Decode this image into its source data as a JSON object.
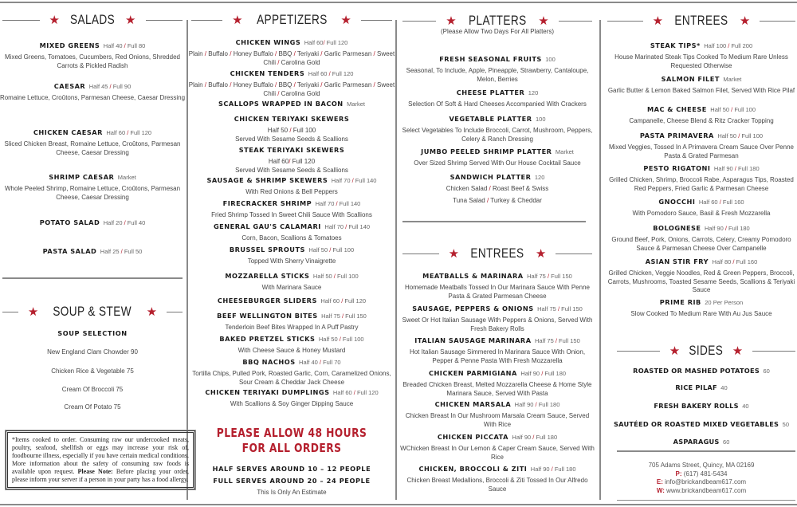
{
  "colors": {
    "accent": "#b5202e",
    "rule": "#8a8a8a"
  },
  "icons": {
    "section_marker": "star-icon"
  },
  "salads": {
    "title": "SALADS",
    "items": [
      {
        "name": "MIXED GREENS",
        "price": "Half 40 / Full 80",
        "desc": "Mixed Greens, Tomatoes, Cucumbers, Red Onions, Shredded Carrots & Pickled Radish"
      },
      {
        "name": "CAESAR",
        "price": "Half 45 / Full 90",
        "desc": "Romaine Lettuce, Croûtons, Parmesan Cheese, Caesar Dressing"
      },
      {
        "name": "CHICKEN CAESAR",
        "price": "Half 60 / Full 120",
        "desc": "Sliced Chicken Breast, Romaine Lettuce, Croûtons, Parmesan Cheese, Caesar Dressing"
      },
      {
        "name": "SHRIMP CAESAR",
        "price": "Market",
        "desc": "Whole Peeled Shrimp, Romaine Lettuce, Croûtons, Parmesan Cheese, Caesar Dressing"
      },
      {
        "name": "POTATO SALAD",
        "price": "Half 20 / Full 40",
        "desc": ""
      },
      {
        "name": "PASTA SALAD",
        "price": "Half 25 / Full 50",
        "desc": ""
      }
    ]
  },
  "soup": {
    "title": "SOUP & STEW",
    "heading": "SOUP SELECTION",
    "items": [
      "New England Clam Chowder 90",
      "Chicken Rice & Vegetable 75",
      "Cream Of Broccoli 75",
      "Cream Of Potato 75"
    ]
  },
  "disclaimer": {
    "text": "*Items cooked to order. Consuming raw our undercooked meats, poultry, seafood, shellfish or eggs may increase your risk of, foodbourne illness, especially if you have certain medical conditions. More information about the safety of consuming raw foods is available upon request. ",
    "note_label": "Please Note:",
    "note": " Before placing your order, please inform your server if a person in your party has a food allergy."
  },
  "appetizers": {
    "title": "APPETIZERS",
    "items": [
      {
        "name": "CHICKEN WINGS",
        "price": "Half 60/ Full 120",
        "desc": "Plain / Buffalo / Honey Buffalo / BBQ / Teriyaki / Garlic Parmesan / Sweet Chili / Carolina Gold"
      },
      {
        "name": "CHICKEN TENDERS",
        "price": "Half 60 / Full 120",
        "desc": "Plain / Buffalo / Honey Buffalo / BBQ / Teriyaki / Garlic Parmesan / Sweet Chili / Carolina Gold"
      },
      {
        "name": "SCALLOPS WRAPPED IN BACON",
        "price": "Market",
        "desc": ""
      },
      {
        "name": "CHICKEN TERIYAKI SKEWERS",
        "price": "",
        "desc": "Half 50 / Full 100",
        "desc2": "Served With Sesame Seeds & Scallions"
      },
      {
        "name": "STEAK TERIYAKI SKEWERS",
        "price": "",
        "desc": "Half 60/ Full 120",
        "desc2": "Served With Sesame Seeds & Scallions"
      },
      {
        "name": "SAUSAGE & SHRIMP SKEWERS",
        "price": "Half 70 / Full 140",
        "desc": "With Red Onions & Bell Peppers"
      },
      {
        "name": "FIRECRACKER SHRIMP",
        "price": "Half 70 / Full 140",
        "desc": "Fried Shrimp Tossed In Sweet Chili Sauce With Scallions"
      },
      {
        "name": "GENERAL GAU'S CALAMARI",
        "price": "Half 70 / Full 140",
        "desc": "Corn, Bacon, Scallions & Tomatoes"
      },
      {
        "name": "BRUSSEL SPROUTS",
        "price": "Half 50 / Full 100",
        "desc": "Topped With Sherry Vinaigrette"
      },
      {
        "name": "MOZZARELLA STICKS",
        "price": "Half 50 / Full 100",
        "desc": "With Marinara Sauce"
      },
      {
        "name": "CHEESEBURGER SLIDERS",
        "price": "Half 60 / Full 120",
        "desc": ""
      },
      {
        "name": "BEEF WELLINGTON BITES",
        "price": "Half 75 / Full 150",
        "desc": "Tenderloin Beef Bites Wrapped In A Puff Pastry"
      },
      {
        "name": "BAKED PRETZEL STICKS",
        "price": "Half 50 / Full 100",
        "desc": "With Cheese Sauce & Honey Mustard"
      },
      {
        "name": "BBQ NACHOS",
        "price": "Half 40 / Full 70",
        "desc": "Tortilla Chips, Pulled Pork, Roasted Garlic, Corn, Caramelized Onions, Sour Cream & Cheddar Jack Cheese"
      },
      {
        "name": "CHICKEN TERIYAKI DUMPLINGS",
        "price": "Half 60 / Full 120",
        "desc": "With Scallions & Soy Ginger Dipping Sauce"
      }
    ],
    "notice_line1": "PLEASE ALLOW 48 HOURS",
    "notice_line2": "FOR ALL ORDERS",
    "half_serves": "HALF SERVES AROUND 10 – 12 PEOPLE",
    "full_serves": "FULL SERVES AROUND 20 – 24 PEOPLE",
    "estimate": "This Is Only An Estimate"
  },
  "platters": {
    "title": "PLATTERS",
    "subtitle": "(Please Allow Two Days For All Platters)",
    "items": [
      {
        "name": "FRESH SEASONAL FRUITS",
        "price": "100",
        "desc": "Seasonal, To Include, Apple, Pineapple, Strawberry, Cantaloupe, Melon, Berries"
      },
      {
        "name": "CHEESE PLATTER",
        "price": "120",
        "desc": "Selection Of Soft & Hard Cheeses Accompanied With Crackers"
      },
      {
        "name": "VEGETABLE PLATTER",
        "price": "100",
        "desc": "Select Vegetables To Include Broccoli, Carrot, Mushroom, Peppers, Celery & Ranch Dressing"
      },
      {
        "name": "JUMBO PEELED SHRIMP PLATTER",
        "price": "Market",
        "desc": "Over Sized Shrimp Served With Our House Cocktail Sauce"
      },
      {
        "name": "SANDWICH PLATTER",
        "price": "120",
        "desc": "Chicken Salad / Roast Beef & Swiss",
        "desc2": "Tuna Salad / Turkey & Cheddar"
      }
    ]
  },
  "entrees1": {
    "title": "ENTREES",
    "items": [
      {
        "name": "MEATBALLS & MARINARA",
        "price": "Half 75 / Full 150",
        "desc": "Homemade Meatballs Tossed In Our Marinara Sauce With Penne Pasta & Grated Parmesan Cheese"
      },
      {
        "name": "SAUSAGE, PEPPERS & ONIONS",
        "price": "Half 75 / Full 150",
        "desc": "Sweet Or Hot Italian Sausage With Peppers & Onions, Served With Fresh Bakery Rolls"
      },
      {
        "name": "ITALIAN SAUSAGE MARINARA",
        "price": "Half 75 / Full 150",
        "desc": "Hot Italian Sausage Simmered In Marinara Sauce With Onion, Pepper & Penne Pasta With Fresh Mozzarella"
      },
      {
        "name": "CHICKEN PARMIGIANA",
        "price": "Half 90 / Full 180",
        "desc": "Breaded Chicken Breast, Melted Mozzarella Cheese & Home Style Marinara Sauce, Served With Pasta"
      },
      {
        "name": "CHICKEN MARSALA",
        "price": "Half 90 / Full 180",
        "desc": "Chicken Breast In Our Mushroom Marsala Cream Sauce, Served With Rice"
      },
      {
        "name": "CHICKEN PICCATA",
        "price": "Half 90 / Full 180",
        "desc": "WChicken Breast In Our Lemon & Caper Cream Sauce, Served With Rice"
      },
      {
        "name": "CHICKEN, BROCCOLI & ZITI",
        "price": "Half 90 / Full 180",
        "desc": "Chicken Breast Medallions, Broccoli & Ziti Tossed In Our Alfredo Sauce"
      }
    ]
  },
  "entrees2": {
    "title": "ENTREES",
    "items": [
      {
        "name": "STEAK TIPS*",
        "price": "Half 100 / Full 200",
        "desc": "House Marinated Steak Tips Cooked To Medium Rare Unless Requested Otherwise"
      },
      {
        "name": "SALMON FILET",
        "price": "Market",
        "desc": "Garlic Butter & Lemon Baked Salmon Filet, Served With Rice Pilaf"
      },
      {
        "name": "MAC & CHEESE",
        "price": "Half 50 / Full 100",
        "desc": "Campanelle, Cheese Blend & Ritz Cracker Topping"
      },
      {
        "name": "PASTA PRIMAVERA",
        "price": "Half 50 / Full 100",
        "desc": "Mixed Veggies, Tossed In A Primavera Cream Sauce Over Penne Pasta & Grated Parmesan"
      },
      {
        "name": "PESTO RIGATONI",
        "price": "Half 90 / Full 180",
        "desc": "Grilled Chicken, Shrimp, Broccoli Rabe, Asparagus Tips, Roasted Red Peppers, Fried Garlic & Parmesan Cheese"
      },
      {
        "name": "GNOCCHI",
        "price": "Half 60 / Full 160",
        "desc": "With Pomodoro Sauce, Basil & Fresh Mozzarella"
      },
      {
        "name": "BOLOGNESE",
        "price": "Half 90 / Full 180",
        "desc": "Ground Beef, Pork, Onions, Carrots, Celery, Creamy Pomodoro Sauce & Parmesan Cheese Over Campanelle"
      },
      {
        "name": "ASIAN STIR FRY",
        "price": "Half 80 / Full 160",
        "desc": "Grilled Chicken, Veggie Noodles, Red & Green Peppers, Broccoli, Carrots, Mushrooms, Toasted Sesame Seeds, Scallions & Teriyaki Sauce"
      },
      {
        "name": "PRIME RIB",
        "price": "20 Per Person",
        "desc": "Slow Cooked To Medium Rare With Au Jus Sauce"
      }
    ]
  },
  "sides": {
    "title": "SIDES",
    "items": [
      {
        "name": "ROASTED OR MASHED POTATOES",
        "price": "60"
      },
      {
        "name": "RICE PILAF",
        "price": "40"
      },
      {
        "name": "FRESH BAKERY ROLLS",
        "price": "40"
      },
      {
        "name": "SAUTÉED OR ROASTED MIXED VEGETABLES",
        "price": "50"
      },
      {
        "name": "ASPARAGUS",
        "price": "60"
      }
    ]
  },
  "contact": {
    "address": "705 Adams Street, Quincy, MA 02169",
    "phone_label": "P:",
    "phone": " (617) 481-5434",
    "email_label": "E:",
    "email": " info@brickandbeam617.com",
    "web_label": "W:",
    "web": " www.brickandbeam617.com"
  }
}
